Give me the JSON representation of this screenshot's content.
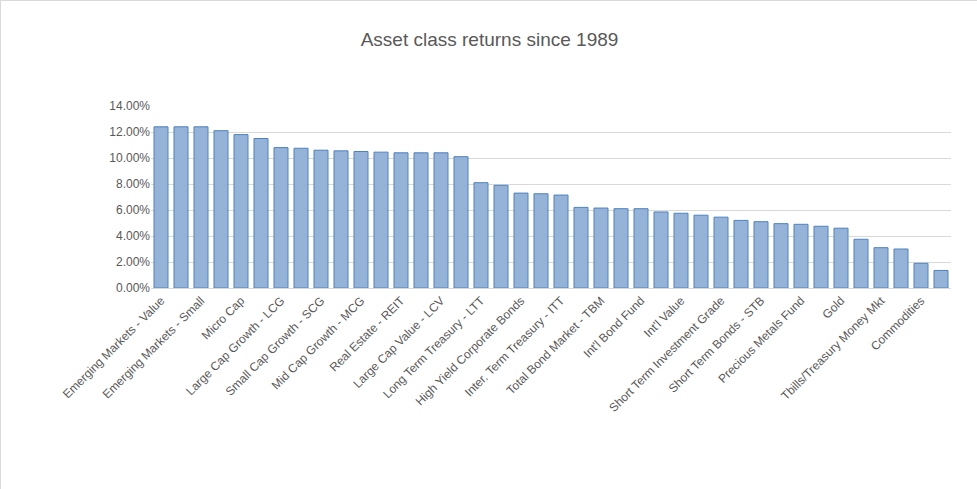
{
  "chart_data": {
    "type": "bar",
    "title": "Asset class returns since 1989",
    "categories": [
      "Emerging Markets - Value",
      null,
      "Emerging Markets - Small",
      null,
      "Micro Cap",
      null,
      "Large Cap Growth - LCG",
      null,
      "Small Cap Growth - SCG",
      null,
      "Mid Cap Growth - MCG",
      null,
      "Real Estate - REIT",
      null,
      "Large Cap Value - LCV",
      null,
      "Long Term Treasury - LTT",
      null,
      "High Yield Corporate Bonds",
      null,
      "Inter. Term Treasury - ITT",
      null,
      "Total Bond Market - TBM",
      null,
      "Int'l Bond Fund",
      null,
      "Int'l Value",
      null,
      "Short Term Investment Grade",
      null,
      "Short Term Bonds - STB",
      null,
      "Precious Metals Fund",
      null,
      "Gold",
      null,
      "Tbills/Treasury Money Mkt",
      null,
      "Commodities",
      null
    ],
    "values": [
      12.4,
      12.4,
      12.4,
      12.1,
      11.8,
      11.5,
      10.8,
      10.75,
      10.6,
      10.55,
      10.5,
      10.45,
      10.4,
      10.4,
      10.4,
      10.1,
      8.1,
      7.9,
      7.3,
      7.25,
      7.15,
      6.2,
      6.15,
      6.1,
      6.1,
      5.85,
      5.75,
      5.6,
      5.45,
      5.2,
      5.1,
      4.95,
      4.9,
      4.75,
      4.6,
      3.75,
      3.1,
      3.0,
      1.9,
      1.35
    ],
    "color": "#95b3d7",
    "ylim": [
      0,
      14
    ],
    "yticks": [
      {
        "value": 0,
        "label": "0.00%"
      },
      {
        "value": 2,
        "label": "2.00%"
      },
      {
        "value": 4,
        "label": "4.00%"
      },
      {
        "value": 6,
        "label": "6.00%"
      },
      {
        "value": 8,
        "label": "8.00%"
      },
      {
        "value": 10,
        "label": "10.00%"
      },
      {
        "value": 12,
        "label": "12.00%"
      },
      {
        "value": 14,
        "label": "14.00%"
      }
    ],
    "grid": true
  }
}
